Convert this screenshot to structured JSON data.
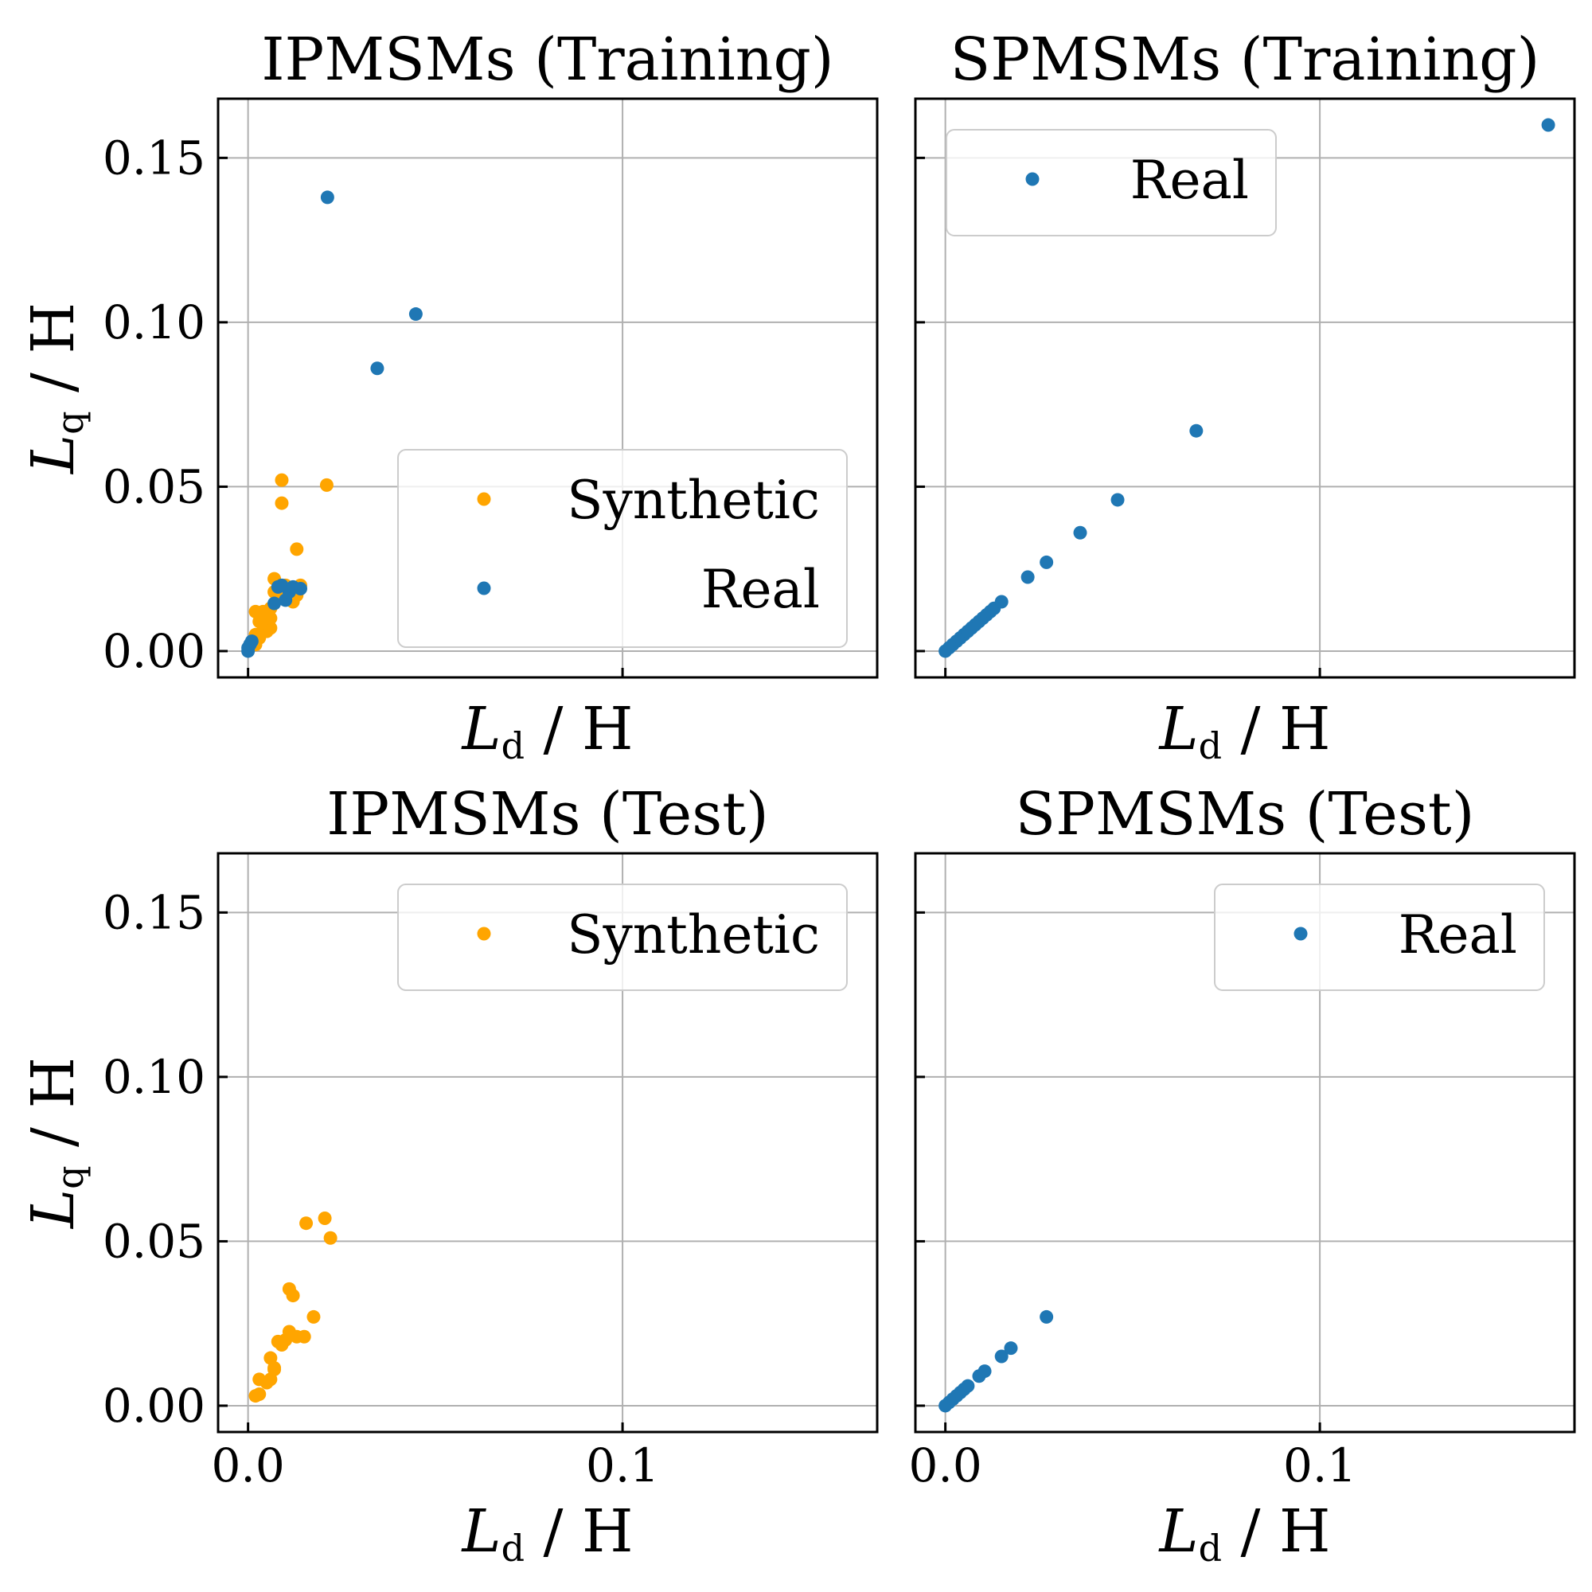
{
  "chart_data": [
    {
      "type": "scatter",
      "title": "IPMSMs (Training)",
      "xlabel": "L_d / H",
      "ylabel": "L_q / H",
      "xlim": [
        -0.008,
        0.168
      ],
      "ylim": [
        -0.008,
        0.168
      ],
      "xticks": [
        0.0,
        0.1
      ],
      "xtick_labels": [],
      "yticks": [
        0.0,
        0.05,
        0.1,
        0.15
      ],
      "ytick_labels": [
        "0.00",
        "0.05",
        "0.10",
        "0.15"
      ],
      "grid": true,
      "legend_position": "lower-right",
      "series": [
        {
          "name": "Synthetic",
          "color": "#ffa500",
          "points": [
            [
              0.002,
              0.002
            ],
            [
              0.002,
              0.005
            ],
            [
              0.003,
              0.004
            ],
            [
              0.003,
              0.009
            ],
            [
              0.002,
              0.012
            ],
            [
              0.004,
              0.008
            ],
            [
              0.004,
              0.012
            ],
            [
              0.005,
              0.006
            ],
            [
              0.005,
              0.011
            ],
            [
              0.005,
              0.009
            ],
            [
              0.006,
              0.007
            ],
            [
              0.006,
              0.013
            ],
            [
              0.006,
              0.01
            ],
            [
              0.007,
              0.022
            ],
            [
              0.007,
              0.018
            ],
            [
              0.008,
              0.016
            ],
            [
              0.009,
              0.052
            ],
            [
              0.009,
              0.045
            ],
            [
              0.01,
              0.02
            ],
            [
              0.01,
              0.018
            ],
            [
              0.011,
              0.016
            ],
            [
              0.012,
              0.015
            ],
            [
              0.012,
              0.019
            ],
            [
              0.013,
              0.031
            ],
            [
              0.013,
              0.017
            ],
            [
              0.014,
              0.02
            ],
            [
              0.021,
              0.0505
            ]
          ]
        },
        {
          "name": "Real",
          "color": "#1f77b4",
          "points": [
            [
              0.0,
              0.0
            ],
            [
              0.0,
              0.001
            ],
            [
              0.0005,
              0.002
            ],
            [
              0.001,
              0.003
            ],
            [
              0.007,
              0.0145
            ],
            [
              0.008,
              0.0195
            ],
            [
              0.009,
              0.02
            ],
            [
              0.01,
              0.0155
            ],
            [
              0.011,
              0.018
            ],
            [
              0.012,
              0.0195
            ],
            [
              0.014,
              0.019
            ],
            [
              0.0212,
              0.138
            ],
            [
              0.0345,
              0.086
            ],
            [
              0.0448,
              0.1025
            ]
          ]
        }
      ]
    },
    {
      "type": "scatter",
      "title": "SPMSMs (Training)",
      "xlabel": "L_d / H",
      "ylabel": "",
      "xlim": [
        -0.008,
        0.168
      ],
      "ylim": [
        -0.008,
        0.168
      ],
      "xticks": [
        0.0,
        0.1
      ],
      "xtick_labels": [],
      "yticks": [
        0.0,
        0.05,
        0.1,
        0.15
      ],
      "ytick_labels": [],
      "grid": true,
      "legend_position": "upper-left",
      "series": [
        {
          "name": "Real",
          "color": "#1f77b4",
          "points": [
            [
              0.0,
              0.0
            ],
            [
              0.001,
              0.001
            ],
            [
              0.002,
              0.002
            ],
            [
              0.003,
              0.003
            ],
            [
              0.004,
              0.004
            ],
            [
              0.005,
              0.005
            ],
            [
              0.006,
              0.006
            ],
            [
              0.007,
              0.007
            ],
            [
              0.008,
              0.008
            ],
            [
              0.009,
              0.009
            ],
            [
              0.01,
              0.01
            ],
            [
              0.011,
              0.011
            ],
            [
              0.012,
              0.012
            ],
            [
              0.013,
              0.013
            ],
            [
              0.015,
              0.015
            ],
            [
              0.022,
              0.0225
            ],
            [
              0.027,
              0.027
            ],
            [
              0.036,
              0.036
            ],
            [
              0.046,
              0.046
            ],
            [
              0.067,
              0.067
            ],
            [
              0.161,
              0.16
            ]
          ]
        }
      ]
    },
    {
      "type": "scatter",
      "title": "IPMSMs (Test)",
      "xlabel": "L_d / H",
      "ylabel": "L_q / H",
      "xlim": [
        -0.008,
        0.168
      ],
      "ylim": [
        -0.008,
        0.168
      ],
      "xticks": [
        0.0,
        0.1
      ],
      "xtick_labels": [
        "0.0",
        "0.1"
      ],
      "yticks": [
        0.0,
        0.05,
        0.1,
        0.15
      ],
      "ytick_labels": [
        "0.00",
        "0.05",
        "0.10",
        "0.15"
      ],
      "grid": true,
      "legend_position": "upper-right",
      "series": [
        {
          "name": "Synthetic",
          "color": "#ffa500",
          "points": [
            [
              0.002,
              0.003
            ],
            [
              0.003,
              0.0035
            ],
            [
              0.003,
              0.008
            ],
            [
              0.005,
              0.007
            ],
            [
              0.006,
              0.008
            ],
            [
              0.006,
              0.0145
            ],
            [
              0.007,
              0.011
            ],
            [
              0.007,
              0.0115
            ],
            [
              0.008,
              0.0195
            ],
            [
              0.009,
              0.0185
            ],
            [
              0.01,
              0.02
            ],
            [
              0.011,
              0.0225
            ],
            [
              0.011,
              0.0355
            ],
            [
              0.012,
              0.0335
            ],
            [
              0.013,
              0.021
            ],
            [
              0.015,
              0.021
            ],
            [
              0.0155,
              0.0555
            ],
            [
              0.0175,
              0.027
            ],
            [
              0.0205,
              0.057
            ],
            [
              0.022,
              0.051
            ]
          ]
        }
      ]
    },
    {
      "type": "scatter",
      "title": "SPMSMs (Test)",
      "xlabel": "L_d / H",
      "ylabel": "",
      "xlim": [
        -0.008,
        0.168
      ],
      "ylim": [
        -0.008,
        0.168
      ],
      "xticks": [
        0.0,
        0.1
      ],
      "xtick_labels": [
        "0.0",
        "0.1"
      ],
      "yticks": [
        0.0,
        0.05,
        0.1,
        0.15
      ],
      "ytick_labels": [],
      "grid": true,
      "legend_position": "upper-right",
      "series": [
        {
          "name": "Real",
          "color": "#1f77b4",
          "points": [
            [
              0.0,
              0.0
            ],
            [
              0.001,
              0.001
            ],
            [
              0.002,
              0.002
            ],
            [
              0.003,
              0.003
            ],
            [
              0.004,
              0.004
            ],
            [
              0.005,
              0.005
            ],
            [
              0.006,
              0.006
            ],
            [
              0.009,
              0.009
            ],
            [
              0.0105,
              0.0105
            ],
            [
              0.015,
              0.015
            ],
            [
              0.0175,
              0.0175
            ],
            [
              0.027,
              0.027
            ]
          ]
        }
      ]
    }
  ]
}
